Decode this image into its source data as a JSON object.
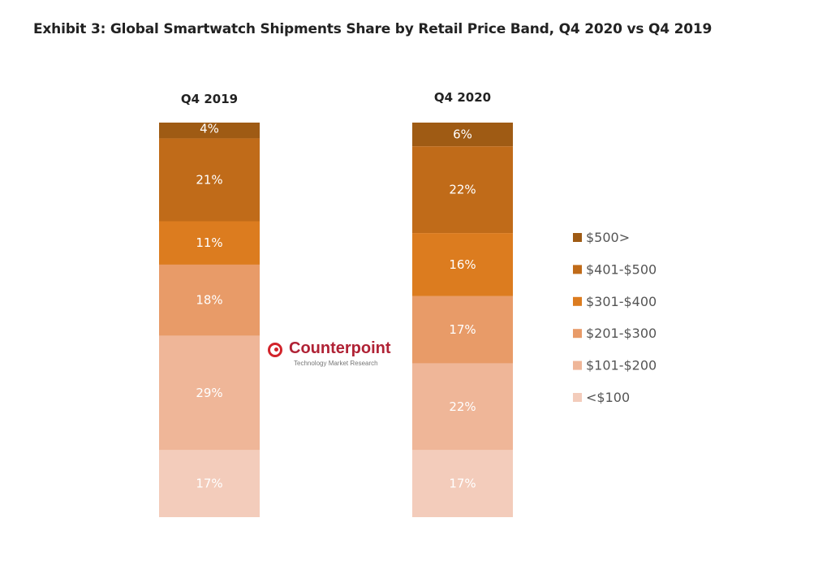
{
  "title": "Exhibit 3: Global Smartwatch Shipments Share by Retail Price Band, Q4 2020 vs Q4 2019",
  "logo": {
    "name": "Counterpoint",
    "tagline": "Technology Market Research"
  },
  "chart_data": {
    "type": "bar",
    "stacked": true,
    "percent": true,
    "categories": [
      "Q4 2019",
      "Q4 2020"
    ],
    "series": [
      {
        "name": "$500>",
        "color": "#9f5b14",
        "values": [
          4,
          6
        ]
      },
      {
        "name": "$401-$500",
        "color": "#c06b19",
        "values": [
          21,
          22
        ]
      },
      {
        "name": "$301-$400",
        "color": "#dc7c1f",
        "values": [
          11,
          16
        ]
      },
      {
        "name": "$201-$300",
        "color": "#e89b68",
        "values": [
          18,
          17
        ]
      },
      {
        "name": "$101-$200",
        "color": "#efb698",
        "values": [
          29,
          22
        ]
      },
      {
        "name": "<$100",
        "color": "#f3ccbb",
        "values": [
          17,
          17
        ]
      }
    ],
    "data_labels": true,
    "legend": "right",
    "ylim": [
      0,
      100
    ],
    "grid": false
  }
}
